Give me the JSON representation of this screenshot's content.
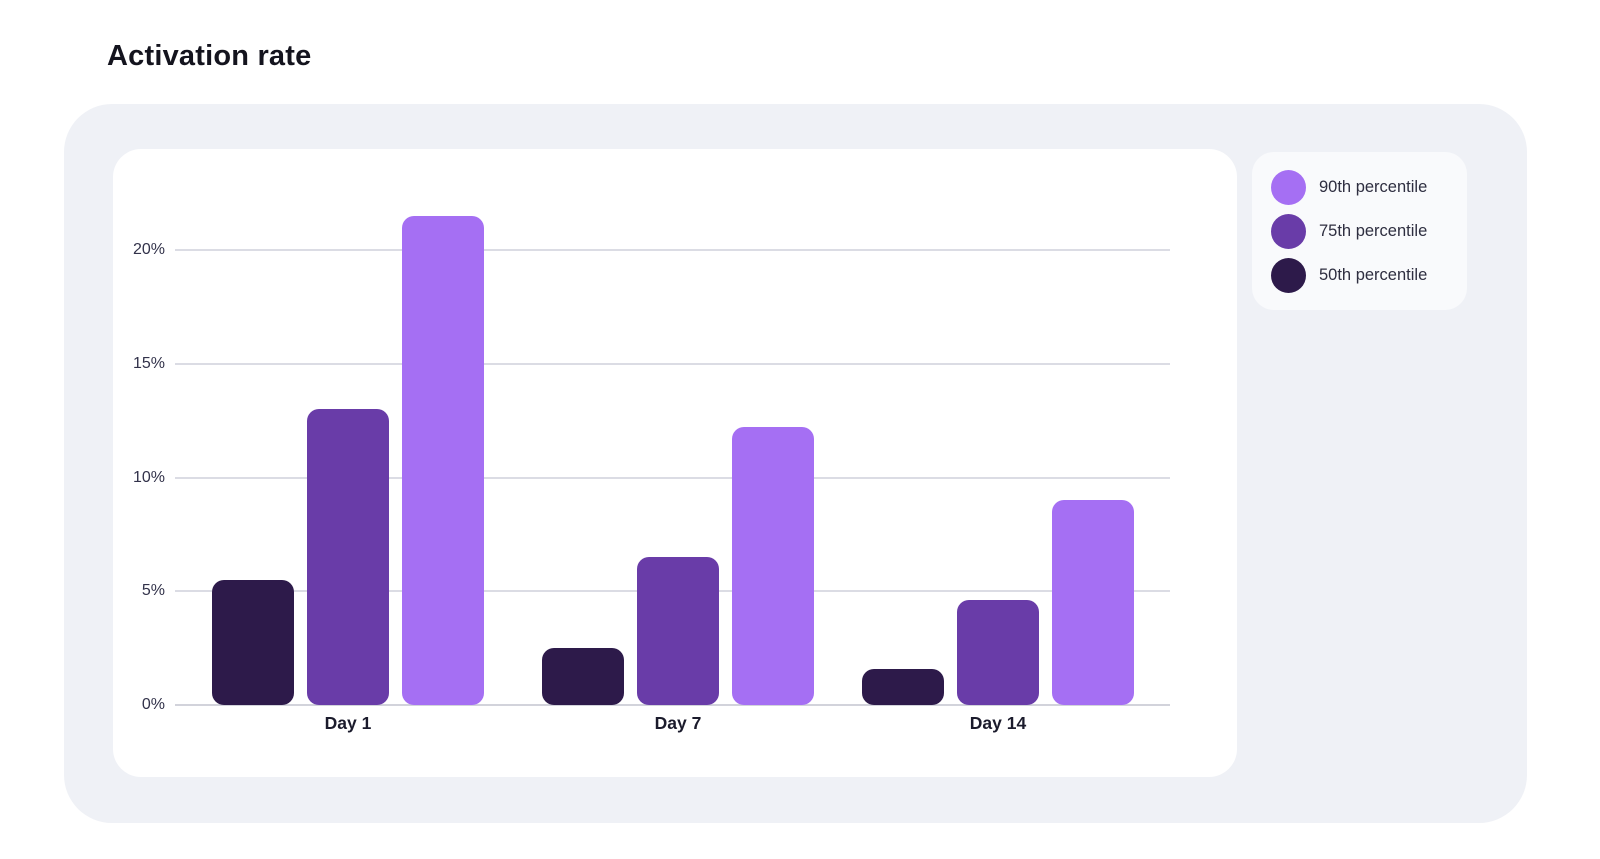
{
  "title": "Activation rate",
  "colors": {
    "page_bg": "#ffffff",
    "panel_bg": "#EFF1F6",
    "card_bg": "#ffffff",
    "legend_bg": "#F9FAFC",
    "gridline": "#DBDCE4",
    "axis_line": "#D2D3DB",
    "title_text": "#14141E",
    "tick_text": "#32324A",
    "xlabel_text": "#1B1B2C",
    "legend_text": "#2E2E40",
    "series_90th_percentile": "#A56FF3",
    "series_75th_percentile": "#693CA8",
    "series_50th_percentile": "#2D1A4A"
  },
  "legend": {
    "items": [
      {
        "label": "90th percentile",
        "color": "#A56FF3",
        "icon": "circle-swatch"
      },
      {
        "label": "75th percentile",
        "color": "#693CA8",
        "icon": "circle-swatch"
      },
      {
        "label": "50th percentile",
        "color": "#2D1A4A",
        "icon": "circle-swatch"
      }
    ]
  },
  "chart_data": {
    "type": "bar",
    "title": "Activation rate",
    "categories": [
      "Day 1",
      "Day 7",
      "Day 14"
    ],
    "series": [
      {
        "name": "50th percentile",
        "color": "#2D1A4A",
        "values": [
          5.5,
          2.5,
          1.6
        ]
      },
      {
        "name": "75th percentile",
        "color": "#693CA8",
        "values": [
          13,
          6.5,
          4.6
        ]
      },
      {
        "name": "90th percentile",
        "color": "#A56FF3",
        "values": [
          21.5,
          12.2,
          9
        ]
      }
    ],
    "xlabel": "",
    "ylabel": "",
    "y_ticks": [
      "0%",
      "5%",
      "10%",
      "15%",
      "20%"
    ],
    "y_tick_values": [
      0,
      5,
      10,
      15,
      20
    ],
    "ylim": [
      0,
      22.6
    ],
    "grid": "horizontal",
    "legend_position": "top-right"
  }
}
